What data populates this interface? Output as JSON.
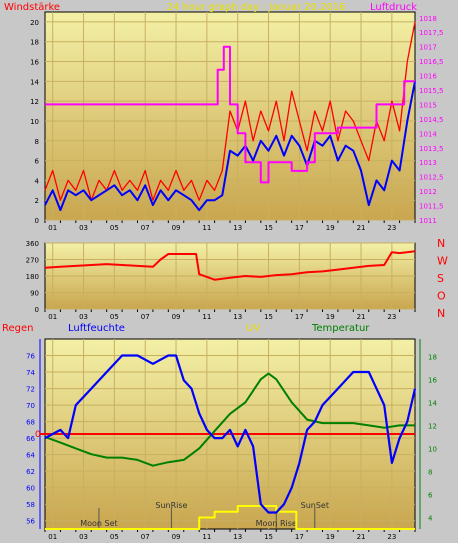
{
  "header": {
    "left_label": "Windstärke",
    "title": "24 hour graph day : Januar 20.2016",
    "right_label": "Luftdruck"
  },
  "colors": {
    "wind": "#ff0000",
    "wind_avg": "#0000ff",
    "pressure": "#ff00ff",
    "direction": "#ff0000",
    "humidity": "#0000ff",
    "temperature": "#008000",
    "uv": "#ffff00",
    "rain": "#ff0000",
    "grid": "#c8b060",
    "title": "#e8e000"
  },
  "x_ticks": [
    "01",
    "03",
    "05",
    "07",
    "09",
    "11",
    "13",
    "15",
    "17",
    "19",
    "21",
    "23"
  ],
  "chart_data": [
    {
      "type": "line",
      "title": "24 hour graph day : Januar 20.2016",
      "xlabel": "",
      "ylabel_left": "Windstärke",
      "ylabel_right": "Luftdruck",
      "x_range": [
        0,
        24
      ],
      "ylim_left": [
        0,
        21
      ],
      "left_ticks": [
        "0",
        "2",
        "4",
        "6",
        "8",
        "10",
        "12",
        "14",
        "16",
        "18",
        "20"
      ],
      "ylim_right": [
        1011,
        1018.2
      ],
      "right_ticks": [
        "1011",
        "1011,5",
        "1012",
        "1012,5",
        "1013",
        "1013,5",
        "1014",
        "1014,5",
        "1015",
        "1015,5",
        "1016",
        "1016,5",
        "1017",
        "1017,5",
        "1018"
      ],
      "grid": true,
      "series": [
        {
          "name": "Windstärke",
          "axis": "left",
          "x": [
            0,
            0.5,
            1,
            1.5,
            2,
            2.5,
            3,
            3.5,
            4,
            4.5,
            5,
            5.5,
            6,
            6.5,
            7,
            7.5,
            8,
            8.5,
            9,
            9.5,
            10,
            10.5,
            11,
            11.5,
            12,
            12.5,
            13,
            13.5,
            14,
            14.5,
            15,
            15.5,
            16,
            16.5,
            17,
            17.5,
            18,
            18.5,
            19,
            19.5,
            20,
            20.5,
            21,
            21.5,
            22,
            22.5,
            23,
            23.5,
            24
          ],
          "y": [
            3,
            5,
            2,
            4,
            3,
            5,
            2,
            4,
            3,
            5,
            3,
            4,
            3,
            5,
            2,
            4,
            3,
            5,
            3,
            4,
            2,
            4,
            3,
            5,
            11,
            9,
            12,
            8,
            11,
            9,
            12,
            8,
            13,
            10,
            7,
            11,
            9,
            12,
            8,
            11,
            10,
            8,
            6,
            10,
            8,
            12,
            9,
            16,
            20
          ]
        },
        {
          "name": "Mittelwind",
          "axis": "left",
          "x": [
            0,
            0.5,
            1,
            1.5,
            2,
            2.5,
            3,
            3.5,
            4,
            4.5,
            5,
            5.5,
            6,
            6.5,
            7,
            7.5,
            8,
            8.5,
            9,
            9.5,
            10,
            10.5,
            11,
            11.5,
            12,
            12.5,
            13,
            13.5,
            14,
            14.5,
            15,
            15.5,
            16,
            16.5,
            17,
            17.5,
            18,
            18.5,
            19,
            19.5,
            20,
            20.5,
            21,
            21.5,
            22,
            22.5,
            23,
            23.5,
            24
          ],
          "y": [
            1.5,
            3,
            1,
            3,
            2.5,
            3,
            2,
            2.5,
            3,
            3.5,
            2.5,
            3,
            2,
            3.5,
            1.5,
            3,
            2,
            3,
            2.5,
            2,
            1,
            2,
            2,
            2.5,
            7,
            6.5,
            7.5,
            6,
            8,
            7,
            8.5,
            6.5,
            8.5,
            7.5,
            5.5,
            8,
            7.5,
            8.5,
            6,
            7.5,
            7,
            5,
            1.5,
            4,
            3,
            6,
            5,
            10,
            14
          ]
        },
        {
          "name": "Luftdruck",
          "axis": "right",
          "x": [
            0,
            11.2,
            11.2,
            11.6,
            11.6,
            12,
            12,
            12.5,
            12.5,
            13,
            13,
            14,
            14,
            14.5,
            14.5,
            16,
            16,
            17,
            17,
            17.5,
            17.5,
            19,
            19,
            21.5,
            21.5,
            23.3,
            23.3,
            24
          ],
          "y": [
            1015.0,
            1015.0,
            1016.2,
            1016.2,
            1017.0,
            1017.0,
            1015.0,
            1015.0,
            1014.0,
            1014.0,
            1013.0,
            1013.0,
            1012.3,
            1012.3,
            1013.0,
            1013.0,
            1012.7,
            1012.7,
            1013.0,
            1013.0,
            1014.0,
            1014.0,
            1014.2,
            1014.2,
            1015.0,
            1015.0,
            1015.8,
            1015.8
          ]
        }
      ]
    },
    {
      "type": "line",
      "title": "",
      "x_range": [
        0,
        24
      ],
      "ylim": [
        0,
        360
      ],
      "left_ticks": [
        "0",
        "90",
        "180",
        "270",
        "360"
      ],
      "right_labels": [
        "N",
        "W",
        "S",
        "O",
        "N"
      ],
      "grid": true,
      "series": [
        {
          "name": "Windrichtung",
          "x": [
            0,
            1,
            2,
            3,
            4,
            5,
            6,
            7,
            7.5,
            8,
            9,
            9.8,
            10,
            11,
            12,
            13,
            14,
            15,
            16,
            17,
            18,
            19,
            20,
            21,
            22,
            22.5,
            23,
            24
          ],
          "y": [
            225,
            230,
            235,
            240,
            245,
            240,
            235,
            230,
            270,
            300,
            300,
            300,
            190,
            160,
            170,
            180,
            175,
            185,
            190,
            200,
            205,
            215,
            225,
            235,
            240,
            310,
            305,
            315
          ]
        }
      ]
    },
    {
      "type": "line",
      "title": "",
      "labels": {
        "rain": "Regen",
        "humidity": "Luftfeuchte",
        "uv": "UV",
        "temperature": "Temperatur"
      },
      "x_range": [
        0,
        24
      ],
      "ylim_left": [
        55,
        78
      ],
      "left_ticks": [
        "56",
        "58",
        "60",
        "62",
        "64",
        "66",
        "68",
        "70",
        "72",
        "74",
        "76"
      ],
      "ylim_right": [
        3,
        19.5
      ],
      "right_ticks": [
        "4",
        "6",
        "8",
        "10",
        "12",
        "14",
        "16",
        "18"
      ],
      "rain_marker": "0",
      "grid": true,
      "events": [
        {
          "label": "Moon Set",
          "x": 3.5
        },
        {
          "label": "SunRise",
          "x": 8.2
        },
        {
          "label": "Moon Rise",
          "x": 15.0
        },
        {
          "label": "SunSet",
          "x": 17.5
        }
      ],
      "series": [
        {
          "name": "Luftfeuchte",
          "axis": "left",
          "x": [
            0,
            1,
            1.5,
            2,
            3,
            4,
            5,
            6,
            7,
            8,
            8.5,
            9,
            9.5,
            10,
            10.5,
            11,
            11.5,
            12,
            12.5,
            13,
            13.5,
            14,
            14.5,
            15,
            15.5,
            16,
            16.5,
            17,
            17.5,
            18,
            19,
            20,
            21,
            22,
            22.5,
            23,
            23.5,
            24
          ],
          "y": [
            66,
            67,
            66,
            70,
            72,
            74,
            76,
            76,
            75,
            76,
            76,
            73,
            72,
            69,
            67,
            66,
            66,
            67,
            65,
            67,
            65,
            58,
            57,
            57,
            58,
            60,
            63,
            67,
            68,
            70,
            72,
            74,
            74,
            70,
            63,
            66,
            68,
            72
          ]
        },
        {
          "name": "Temperatur",
          "axis": "right",
          "x": [
            0,
            1,
            2,
            3,
            4,
            5,
            6,
            7,
            8,
            9,
            10,
            11,
            12,
            13,
            13.5,
            14,
            14.5,
            15,
            16,
            17,
            18,
            19,
            20,
            21,
            22,
            23,
            24
          ],
          "y": [
            11,
            10.5,
            10,
            9.5,
            9.2,
            9.2,
            9,
            8.5,
            8.8,
            9,
            10,
            11.5,
            13,
            14,
            15,
            16,
            16.5,
            16,
            14,
            12.5,
            12.2,
            12.2,
            12.2,
            12,
            11.8,
            12,
            12
          ]
        },
        {
          "name": "UV",
          "axis": "right",
          "x": [
            0,
            10,
            10,
            11,
            11,
            12.5,
            12.5,
            15,
            15,
            16.3,
            16.3,
            24
          ],
          "y": [
            3,
            3,
            4,
            4,
            4.5,
            4.5,
            5,
            5,
            4.5,
            4.5,
            3,
            3
          ]
        }
      ]
    }
  ]
}
